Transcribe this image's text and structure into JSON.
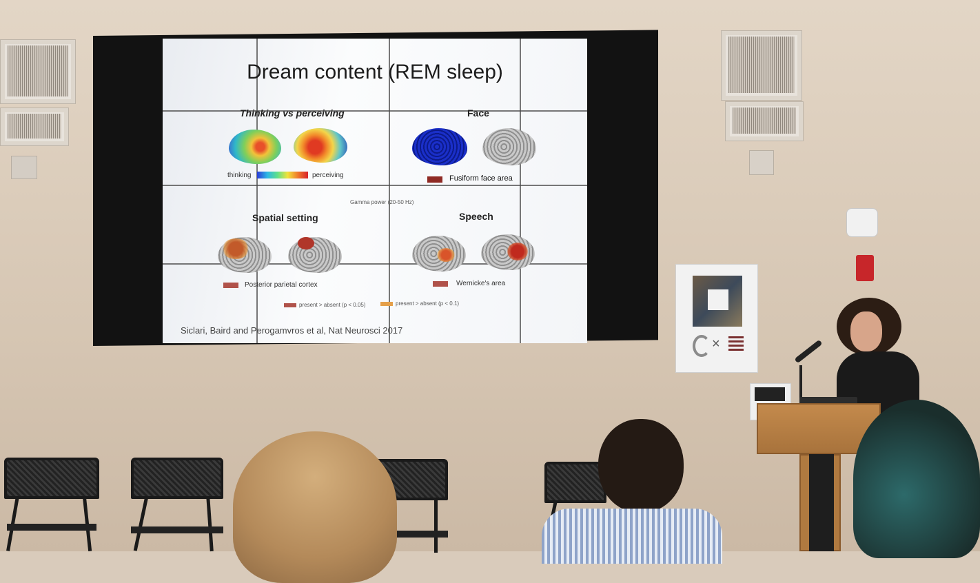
{
  "slide": {
    "title": "Dream content (REM sleep)",
    "panels": {
      "thinking": {
        "heading": "Thinking vs perceiving",
        "left_label": "thinking",
        "right_label": "perceiving"
      },
      "face": {
        "heading": "Face",
        "legend": "Fusiform face area"
      },
      "spatial": {
        "heading": "Spatial setting",
        "legend": "Posterior parietal cortex"
      },
      "speech": {
        "heading": "Speech",
        "legend": "Wernicke's area"
      }
    },
    "gamma_label": "Gamma power (20-50 Hz)",
    "legend": {
      "p05": "present > absent (p < 0.05)",
      "p1": "present > absent (p < 0.1)"
    },
    "citation": "Siclari, Baird and Perogamvros et al, Nat Neurosci 2017"
  },
  "colors": {
    "dark_red": "#8f2a24",
    "brick": "#b0524a",
    "orange": "#e5a04a"
  }
}
